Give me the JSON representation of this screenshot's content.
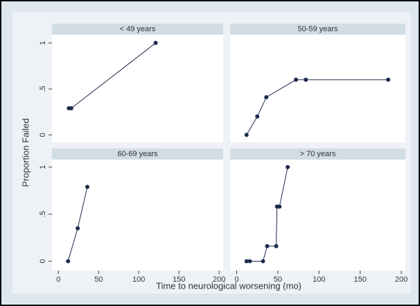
{
  "axis_labels": {
    "x": "Time to neurological worsening  (mo)",
    "y": "Proportion Failed"
  },
  "chart_data": [
    {
      "type": "line",
      "title": "< 49 years",
      "x": [
        13,
        16,
        121
      ],
      "values": [
        0.29,
        0.29,
        1
      ],
      "color": "#1c2b4a",
      "xlim": [
        -8,
        205
      ],
      "ylim": [
        -0.08,
        1.09
      ],
      "yticks": [
        0,
        {
          "value": 0.5,
          "label": ".5"
        },
        1
      ]
    },
    {
      "type": "line",
      "title": "50-59 years",
      "x": [
        12,
        25,
        36,
        72,
        84,
        184
      ],
      "values": [
        0,
        0.2,
        0.41,
        0.6,
        0.6,
        0.6
      ],
      "color": "#1c2b4a",
      "xlim": [
        -8,
        205
      ],
      "ylim": [
        -0.08,
        1.09
      ]
    },
    {
      "type": "line",
      "title": "60-69 years",
      "x": [
        12,
        24,
        36
      ],
      "values": [
        0,
        0.35,
        0.79
      ],
      "color": "#1c2b4a",
      "xlim": [
        -8,
        205
      ],
      "ylim": [
        -0.1,
        1.08
      ],
      "xticks": [
        0,
        50,
        100,
        150,
        200
      ],
      "yticks": [
        0,
        {
          "value": 0.5,
          "label": ".5"
        },
        1
      ]
    },
    {
      "type": "line",
      "title": "> 70 years",
      "x": [
        12,
        16,
        32,
        37,
        48,
        49,
        52,
        62
      ],
      "values": [
        0,
        0,
        0,
        0.16,
        0.16,
        0.58,
        0.58,
        1
      ],
      "color": "#1c2b4a",
      "xlim": [
        -8,
        205
      ],
      "ylim": [
        -0.1,
        1.08
      ],
      "xticks": [
        0,
        50,
        100,
        150,
        200
      ]
    }
  ]
}
